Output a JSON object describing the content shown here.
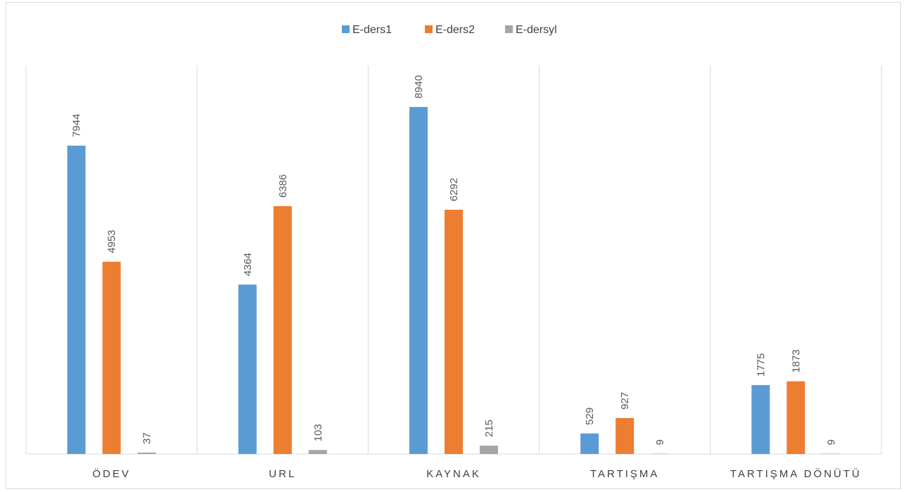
{
  "chart_data": {
    "type": "bar",
    "categories": [
      "ÖDEV",
      "URL",
      "KAYNAK",
      "TARTIŞMA",
      "TARTIŞMA DÖNÜTÜ"
    ],
    "series": [
      {
        "name": "E-ders1",
        "color": "#5b9bd5",
        "values": [
          7944,
          4364,
          8940,
          529,
          1775
        ]
      },
      {
        "name": "E-ders2",
        "color": "#ed7d31",
        "values": [
          4953,
          6386,
          6292,
          927,
          1873
        ]
      },
      {
        "name": "E-dersyl",
        "color": "#a5a5a5",
        "values": [
          37,
          103,
          215,
          9,
          9
        ]
      }
    ],
    "ylim": [
      0,
      8940
    ],
    "legend_position": "top",
    "data_labels": true,
    "gridlines": "vertical category separators"
  }
}
